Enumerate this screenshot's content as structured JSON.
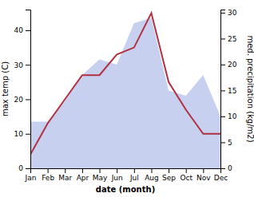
{
  "chart_data": {
    "type": "line",
    "categories": [
      "Jan",
      "Feb",
      "Mar",
      "Apr",
      "May",
      "Jun",
      "Jul",
      "Aug",
      "Sep",
      "Oct",
      "Nov",
      "Dec"
    ],
    "series": [
      {
        "type": "area",
        "axis": "y2",
        "color": "#c8d0f0",
        "values": [
          9,
          9,
          13,
          18,
          21,
          20,
          28,
          29,
          15,
          14,
          18,
          10
        ]
      },
      {
        "type": "line",
        "color": "#b03040",
        "values": [
          4,
          13,
          20,
          27,
          27,
          33,
          35,
          45,
          25,
          17,
          10,
          10
        ]
      }
    ],
    "xlabel": "date (month)",
    "ylabel": "max temp (C)",
    "y2label": "med. precipitation (kg/m2)",
    "ylim": [
      0,
      46
    ],
    "yticks": [
      0,
      10,
      20,
      30,
      40
    ],
    "y2lim": [
      0,
      30.6
    ],
    "y2ticks": [
      0,
      5,
      10,
      15,
      20,
      25,
      30
    ],
    "grid": false
  }
}
